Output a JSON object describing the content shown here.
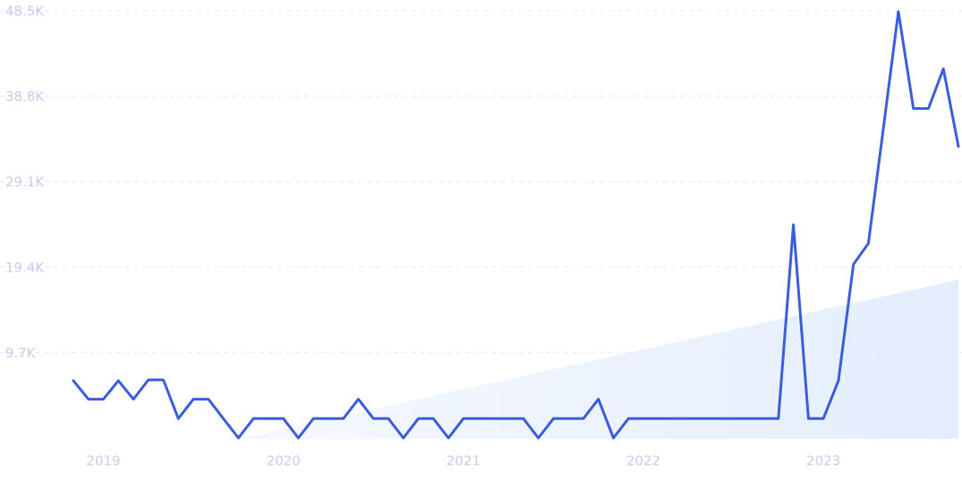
{
  "chart_data": {
    "type": "line",
    "categories": [
      null,
      null,
      "2019",
      null,
      null,
      null,
      null,
      null,
      null,
      null,
      null,
      null,
      null,
      null,
      "2020",
      null,
      null,
      null,
      null,
      null,
      null,
      null,
      null,
      null,
      null,
      null,
      "2021",
      null,
      null,
      null,
      null,
      null,
      null,
      null,
      null,
      null,
      null,
      null,
      "2022",
      null,
      null,
      null,
      null,
      null,
      null,
      null,
      null,
      null,
      null,
      null,
      "2023",
      null,
      null,
      null,
      null,
      null,
      null,
      null,
      null,
      null
    ],
    "series": [
      {
        "color": "#3a5ddc",
        "values": [
          6500,
          4400,
          4400,
          6500,
          4400,
          6600,
          6600,
          2200,
          4400,
          4400,
          2200,
          0,
          2200,
          2200,
          2200,
          0,
          2200,
          2200,
          2200,
          4400,
          2200,
          2200,
          0,
          2200,
          2200,
          0,
          2200,
          2200,
          2200,
          2200,
          2200,
          0,
          2200,
          2200,
          2200,
          4400,
          0,
          2200,
          2200,
          2200,
          2200,
          2200,
          2200,
          2200,
          2200,
          2200,
          2200,
          2200,
          24200,
          2200,
          2200,
          6500,
          19700,
          22100,
          35200,
          48400,
          37400,
          37400,
          41900,
          33100
        ]
      }
    ],
    "ylim": [
      0,
      48500
    ],
    "yticks": [
      {
        "value": 9700,
        "label": "9.7K"
      },
      {
        "value": 19400,
        "label": "19.4K"
      },
      {
        "value": 29100,
        "label": "29.1K"
      },
      {
        "value": 38800,
        "label": "38.8K"
      },
      {
        "value": 48500,
        "label": "48.5K"
      }
    ],
    "grid": true
  }
}
